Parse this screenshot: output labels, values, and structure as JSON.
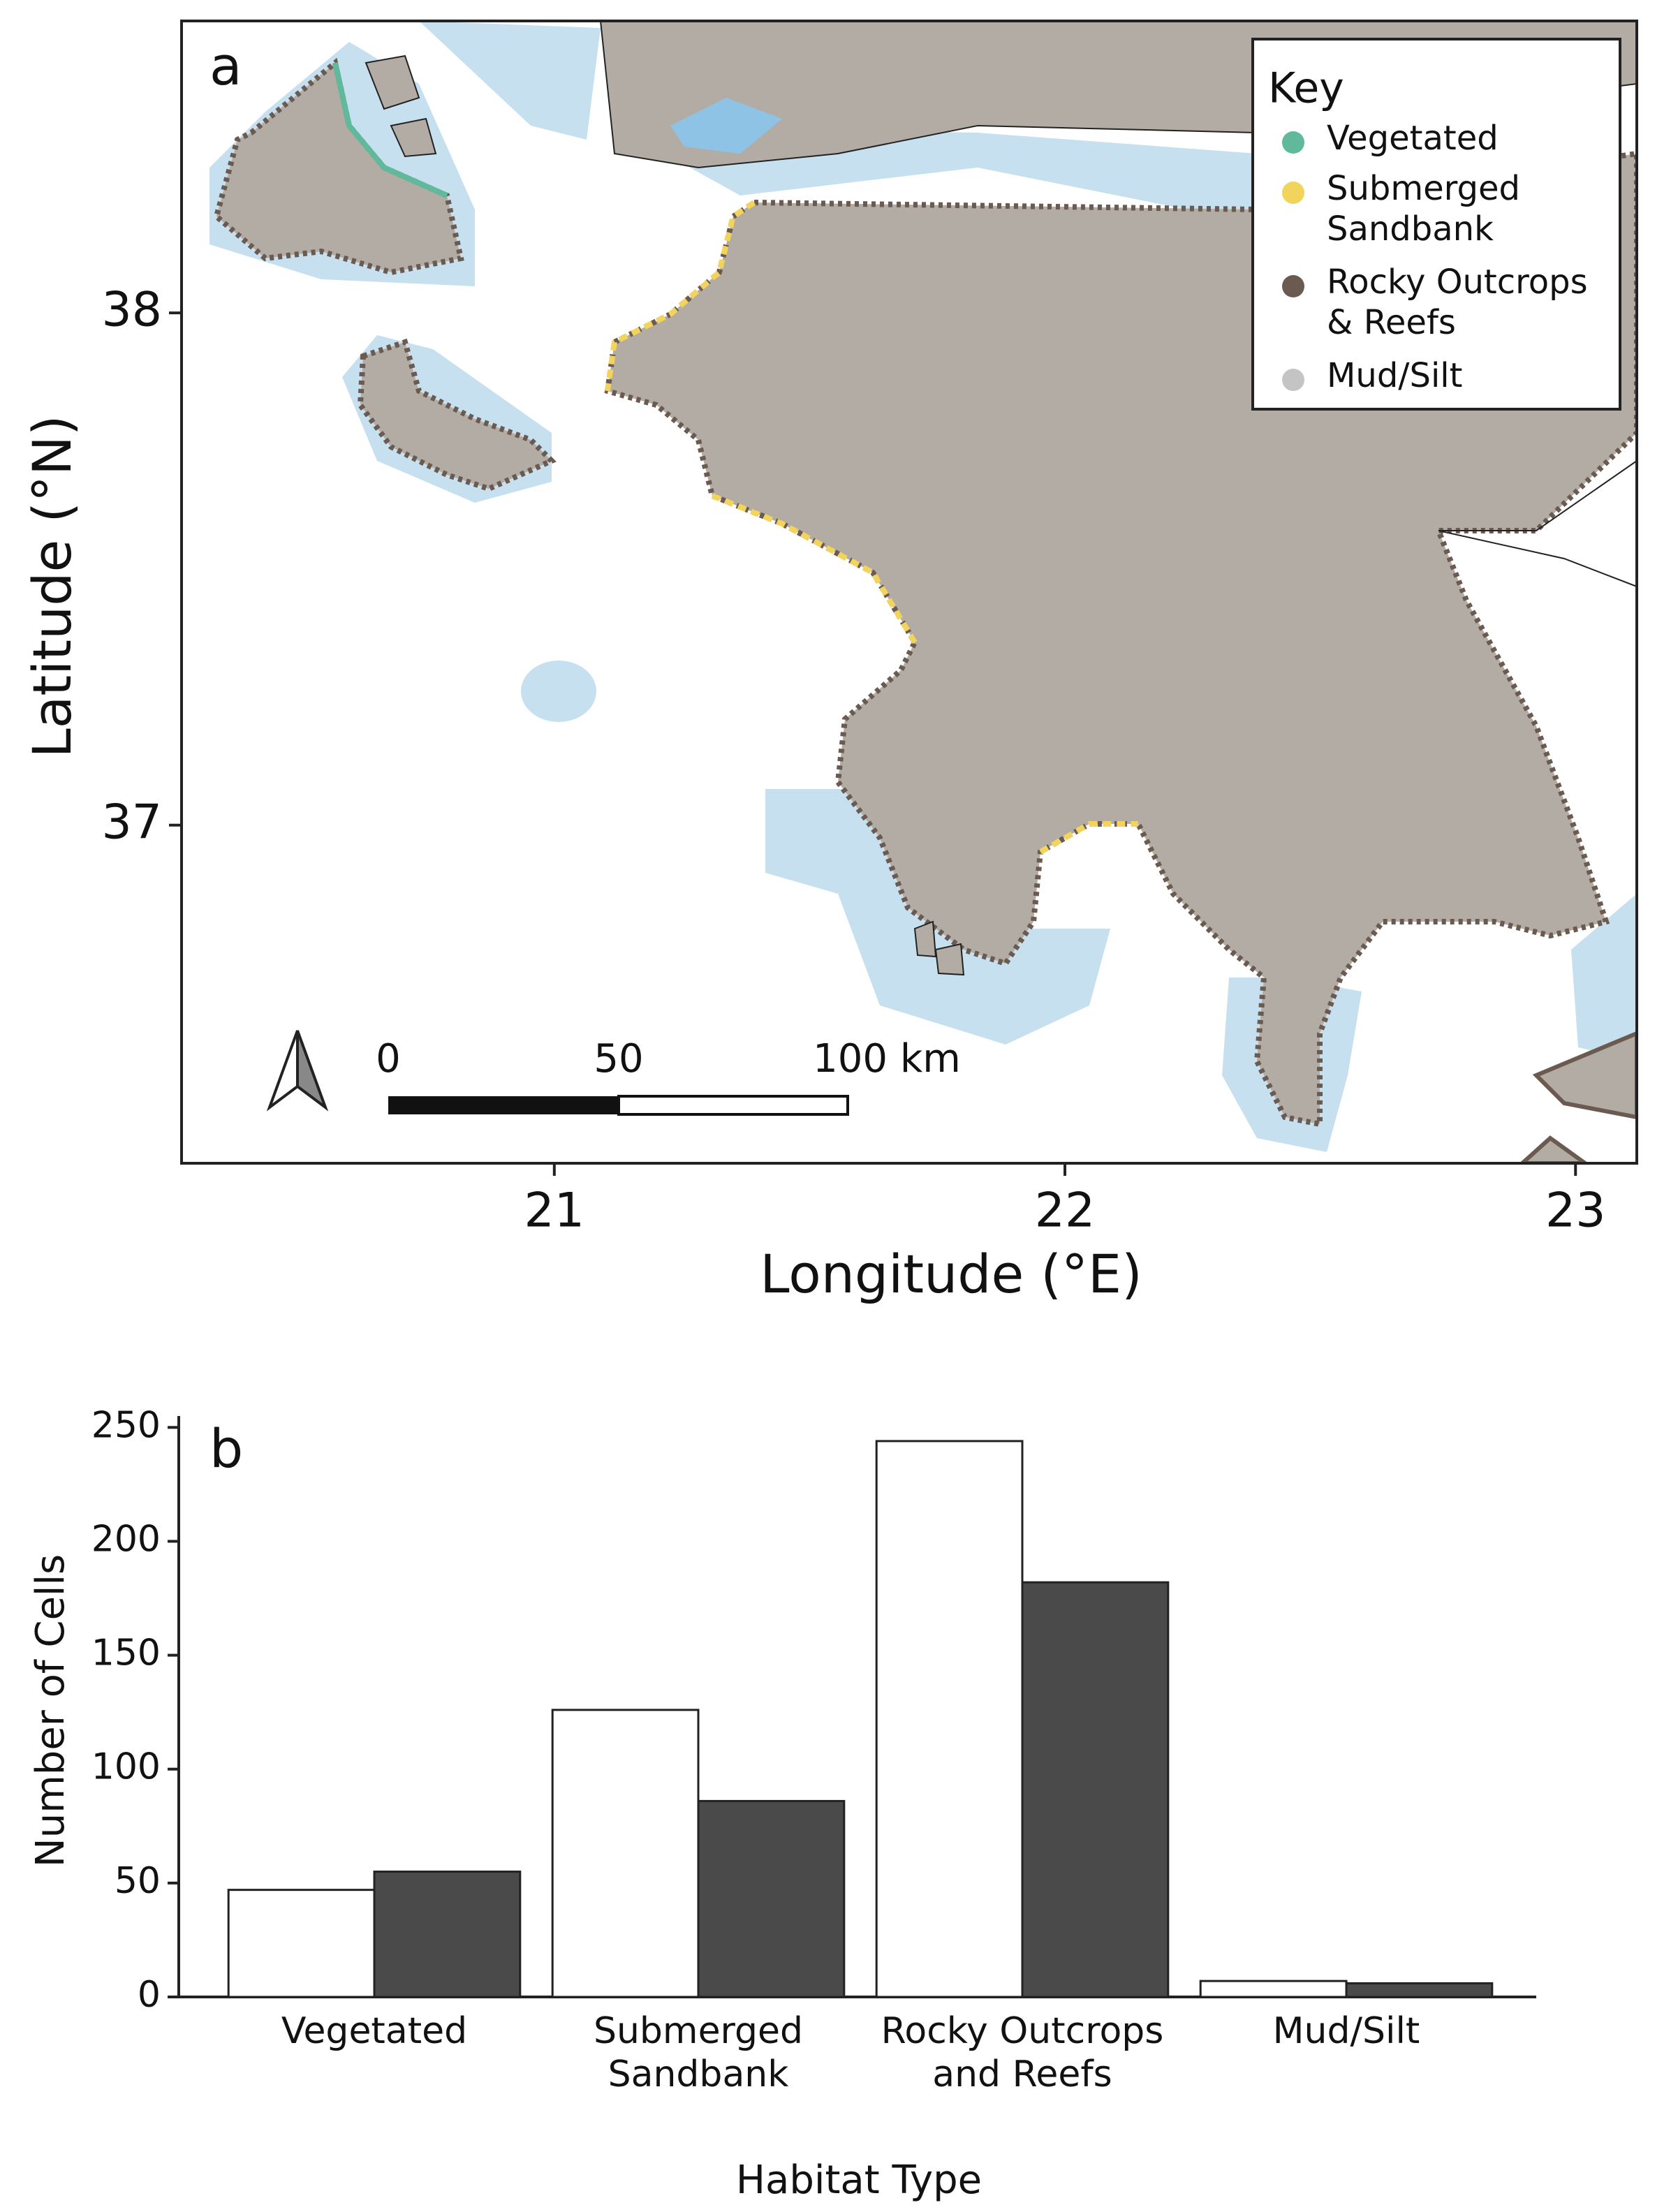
{
  "chart_data": [
    {
      "type": "map",
      "panel": "a",
      "xlabel": "Longitude (°E)",
      "ylabel": "Latitude (°N)",
      "xlim": [
        20.27,
        23.12
      ],
      "ylim": [
        36.34,
        38.57
      ],
      "xticks": [
        21,
        22,
        23
      ],
      "yticks": [
        37,
        38
      ],
      "legend_title": "Key",
      "legend": [
        {
          "label": "Vegetated",
          "color": "#5fb99a"
        },
        {
          "label": "Submerged\nSandbank",
          "color": "#f2d45c"
        },
        {
          "label": "Rocky Outcrops\n& Reefs",
          "color": "#6b5a50"
        },
        {
          "label": "Mud/Silt",
          "color": "#c4c4c4"
        }
      ],
      "scale_bar": [
        "0",
        "50",
        "100 km"
      ]
    },
    {
      "type": "bar",
      "panel": "b",
      "xlabel": "Habitat Type",
      "ylabel": "Number of Cells",
      "categories": [
        "Vegetated",
        "Submerged\nSandbank",
        "Rocky Outcrops\nand Reefs",
        "Mud/Silt"
      ],
      "series": [
        {
          "color": "#ffffff",
          "values": [
            47,
            126,
            244,
            7
          ]
        },
        {
          "color": "#4a4a4a",
          "values": [
            55,
            86,
            182,
            6
          ]
        }
      ],
      "ylim": [
        0,
        255
      ],
      "yticks": [
        0,
        50,
        100,
        150,
        200,
        250
      ]
    }
  ]
}
